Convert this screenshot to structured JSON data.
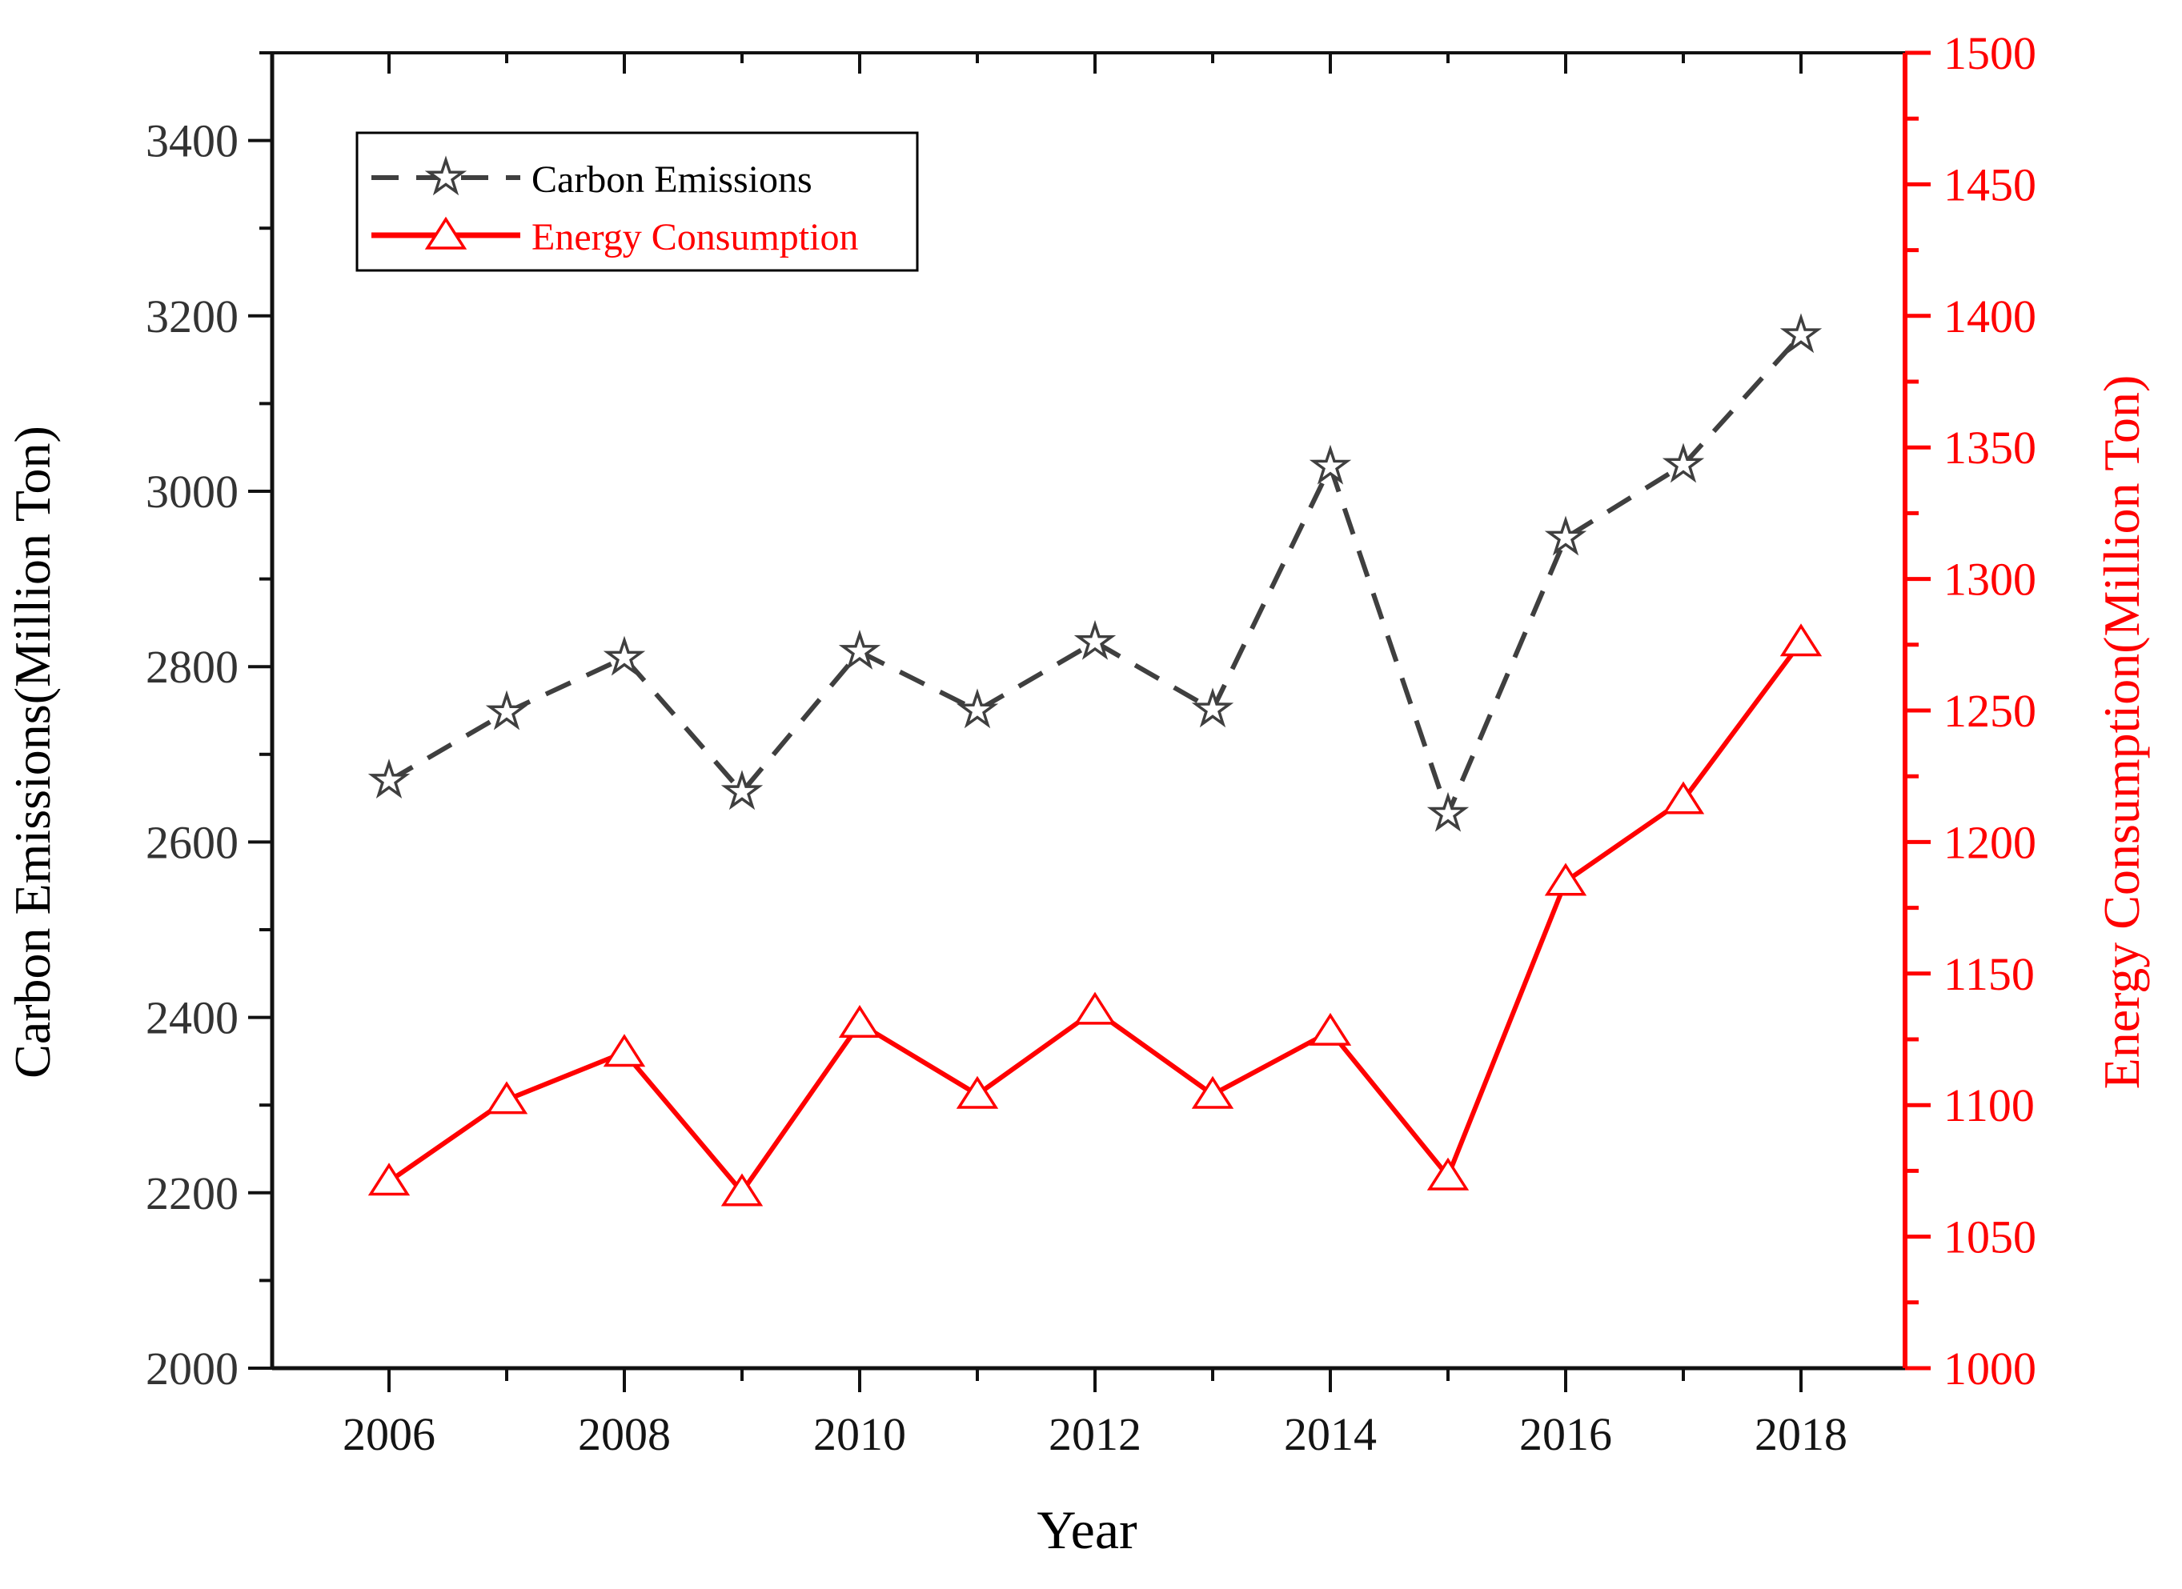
{
  "chart_data": {
    "type": "line",
    "title": "",
    "x": [
      2006,
      2007,
      2008,
      2009,
      2010,
      2011,
      2012,
      2013,
      2014,
      2015,
      2016,
      2017,
      2018
    ],
    "series": [
      {
        "name": "Carbon Emissions",
        "axis": "left",
        "color": "#3F3F3F",
        "line_style": "dashed",
        "marker": "star",
        "values": [
          2670,
          2748,
          2810,
          2657,
          2817,
          2750,
          2828,
          2751,
          3028,
          2632,
          2947,
          3030,
          3178
        ]
      },
      {
        "name": "Energy Consumption",
        "axis": "right",
        "color": "#FF0000",
        "line_style": "solid",
        "marker": "triangle",
        "values": [
          1071,
          1102,
          1120,
          1067,
          1131,
          1104,
          1136,
          1104,
          1128,
          1073,
          1185,
          1216,
          1276
        ]
      }
    ],
    "x_axis": {
      "label": "Year",
      "range": [
        2005,
        2018.9
      ],
      "major_ticks": [
        2006,
        2008,
        2010,
        2012,
        2014,
        2016,
        2018
      ],
      "minor_ticks": [
        2007,
        2009,
        2011,
        2013,
        2015,
        2017
      ]
    },
    "left_axis": {
      "label": "Carbon Emissions(Million Ton)",
      "min": 2000,
      "max": 3500,
      "major_ticks": [
        2000,
        2200,
        2400,
        2600,
        2800,
        3000,
        3200,
        3400
      ],
      "minor_ticks": [
        2100,
        2300,
        2500,
        2700,
        2900,
        3100,
        3300,
        3500
      ]
    },
    "right_axis": {
      "label": "Energy Consumption(Million Ton)",
      "min": 1000,
      "max": 1500,
      "major_ticks": [
        1000,
        1050,
        1100,
        1150,
        1200,
        1250,
        1300,
        1350,
        1400,
        1450,
        1500
      ],
      "minor_ticks": [
        1025,
        1075,
        1125,
        1175,
        1225,
        1275,
        1325,
        1375,
        1425,
        1475
      ]
    },
    "legend": {
      "position": "top-left",
      "items": [
        "Carbon Emissions",
        "Energy Consumption"
      ]
    },
    "grid": false
  }
}
